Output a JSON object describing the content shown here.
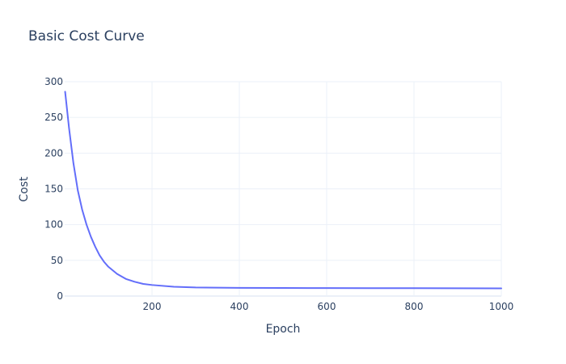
{
  "chart_data": {
    "type": "line",
    "title": "Basic Cost Curve",
    "xlabel": "Epoch",
    "ylabel": "Cost",
    "xlim": [
      0,
      1000
    ],
    "ylim": [
      0,
      300
    ],
    "x_ticks": [
      200,
      400,
      600,
      800,
      1000
    ],
    "y_ticks": [
      0,
      50,
      100,
      150,
      200,
      250,
      300
    ],
    "grid": true,
    "legend": "none",
    "series": [
      {
        "color": "#636efa",
        "x": [
          1,
          10,
          20,
          30,
          40,
          50,
          60,
          70,
          80,
          90,
          100,
          120,
          140,
          160,
          180,
          200,
          250,
          300,
          400,
          500,
          600,
          700,
          800,
          900,
          1000
        ],
        "y": [
          286,
          235,
          186,
          148,
          121,
          100,
          83,
          69,
          57,
          48,
          41,
          31,
          24,
          20,
          17,
          15.5,
          13,
          12,
          11.5,
          11.3,
          11.2,
          11.1,
          11,
          10.9,
          10.8
        ]
      }
    ]
  }
}
